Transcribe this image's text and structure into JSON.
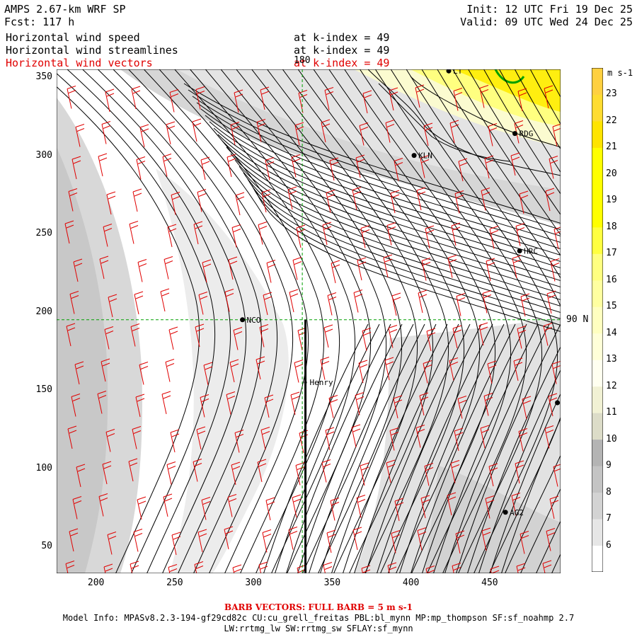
{
  "header": {
    "model": "AMPS 2.67-km WRF SP",
    "fcst": "Fcst: 117 h",
    "init": "Init: 12 UTC Fri 19 Dec 25",
    "valid": "Valid: 09 UTC Wed 24 Dec 25",
    "fields": [
      {
        "label": "Horizontal wind speed",
        "level": "at k-index = 49",
        "color": "#000000"
      },
      {
        "label": "Horizontal wind streamlines",
        "level": "at k-index = 49",
        "color": "#000000"
      },
      {
        "label": "Horizontal wind vectors",
        "level": "at k-index = 49",
        "color": "#e00000"
      }
    ]
  },
  "map": {
    "x_ticks": [
      "200",
      "250",
      "300",
      "350",
      "400",
      "450"
    ],
    "y_ticks": [
      "50",
      "100",
      "150",
      "200",
      "250",
      "300",
      "350"
    ],
    "x_range": [
      175,
      495
    ],
    "y_range": [
      33,
      355
    ],
    "meridian_label": "180",
    "parallel_label": "90 N",
    "stations": [
      {
        "name": "NCO",
        "x": 293,
        "y": 195
      },
      {
        "name": "Henry",
        "x": 333,
        "y": 155
      },
      {
        "name": "KLN",
        "x": 402,
        "y": 300
      },
      {
        "name": "RDG",
        "x": 466,
        "y": 314
      },
      {
        "name": "HRC",
        "x": 469,
        "y": 239
      },
      {
        "name": "AG2",
        "x": 460,
        "y": 72
      },
      {
        "name": "LT",
        "x": 424,
        "y": 354
      },
      {
        "name": "",
        "x": 493,
        "y": 142
      }
    ],
    "cross_section": {
      "x": 333,
      "y_from": 33,
      "y_to": 195
    },
    "colors": {
      "streamline": "#000000",
      "barb": "#e00000",
      "grid": "#00a000"
    }
  },
  "colorbar": {
    "units": "m s-1",
    "labels": [
      "6",
      "7",
      "8",
      "9",
      "10",
      "11",
      "12",
      "13",
      "14",
      "15",
      "16",
      "17",
      "18",
      "19",
      "20",
      "21",
      "22",
      "23"
    ],
    "colors": [
      "#ffffff",
      "#e6e6e6",
      "#d3d3d3",
      "#c4c4c4",
      "#b4b4b4",
      "#dcdcc8",
      "#f1f1d4",
      "#fffff0",
      "#ffffd8",
      "#ffffc0",
      "#ffffa0",
      "#ffff80",
      "#ffff40",
      "#ffff00",
      "#ffff00",
      "#ffff00",
      "#ffe400",
      "#ffdc30",
      "#ffd040"
    ]
  },
  "footer": {
    "barb_note": "BARB VECTORS: FULL BARB = 5 m s-1",
    "model_info": "Model Info: MPASv8.2.3-194-gf29cd82c CU:cu_grell_freitas PBL:bl_mynn MP:mp_thompson SF:sf_noahmp 2.7",
    "model_info2": "LW:rrtmg_lw SW:rrtmg_sw SFLAY:sf_mynn"
  }
}
